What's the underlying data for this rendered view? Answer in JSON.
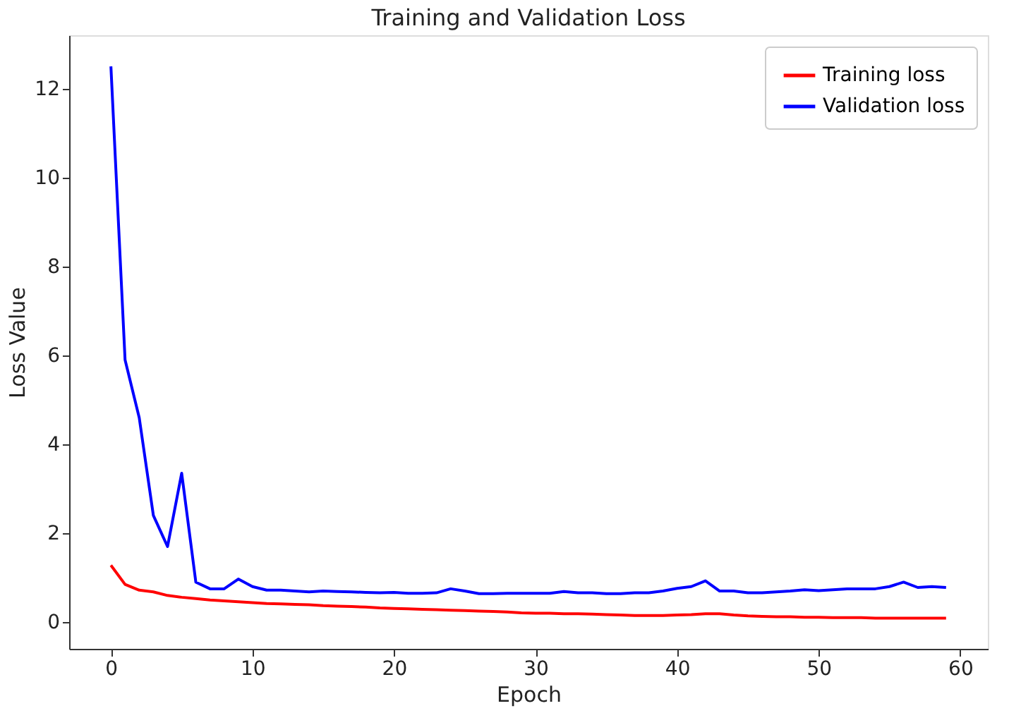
{
  "chart_data": {
    "type": "line",
    "title": "Training and Validation Loss",
    "xlabel": "Epoch",
    "ylabel": "Loss Value",
    "x": [
      0,
      1,
      2,
      3,
      4,
      5,
      6,
      7,
      8,
      9,
      10,
      11,
      12,
      13,
      14,
      15,
      16,
      17,
      18,
      19,
      20,
      21,
      22,
      23,
      24,
      25,
      26,
      27,
      28,
      29,
      30,
      31,
      32,
      33,
      34,
      35,
      36,
      37,
      38,
      39,
      40,
      41,
      42,
      43,
      44,
      45,
      46,
      47,
      48,
      49,
      50,
      51,
      52,
      53,
      54,
      55,
      56,
      57,
      58,
      59
    ],
    "series": [
      {
        "name": "Training loss",
        "color": "#ff0000",
        "values": [
          1.28,
          0.85,
          0.72,
          0.68,
          0.6,
          0.56,
          0.53,
          0.5,
          0.48,
          0.46,
          0.44,
          0.42,
          0.41,
          0.4,
          0.39,
          0.37,
          0.36,
          0.35,
          0.34,
          0.32,
          0.31,
          0.3,
          0.29,
          0.28,
          0.27,
          0.26,
          0.25,
          0.24,
          0.23,
          0.21,
          0.2,
          0.2,
          0.19,
          0.19,
          0.18,
          0.17,
          0.16,
          0.15,
          0.15,
          0.15,
          0.16,
          0.17,
          0.19,
          0.19,
          0.16,
          0.14,
          0.13,
          0.12,
          0.12,
          0.11,
          0.11,
          0.1,
          0.1,
          0.1,
          0.09,
          0.09,
          0.09,
          0.09,
          0.09,
          0.09
        ]
      },
      {
        "name": "Validation loss",
        "color": "#0000ff",
        "values": [
          12.5,
          5.9,
          4.6,
          2.4,
          1.7,
          3.35,
          0.9,
          0.75,
          0.75,
          0.97,
          0.8,
          0.72,
          0.72,
          0.7,
          0.68,
          0.7,
          0.69,
          0.68,
          0.67,
          0.66,
          0.67,
          0.65,
          0.65,
          0.66,
          0.75,
          0.7,
          0.64,
          0.64,
          0.65,
          0.65,
          0.65,
          0.65,
          0.69,
          0.66,
          0.66,
          0.64,
          0.64,
          0.66,
          0.66,
          0.7,
          0.76,
          0.8,
          0.93,
          0.7,
          0.7,
          0.66,
          0.66,
          0.68,
          0.7,
          0.73,
          0.71,
          0.73,
          0.75,
          0.75,
          0.75,
          0.8,
          0.9,
          0.78,
          0.8,
          0.78
        ]
      }
    ],
    "xlim": [
      -2.95,
      61.95
    ],
    "xticks": [
      0,
      10,
      20,
      30,
      40,
      50,
      60
    ],
    "ylim": [
      -0.6,
      13.2
    ],
    "yticks": [
      0,
      2,
      4,
      6,
      8,
      10,
      12
    ],
    "legend": "top right",
    "grid": false,
    "marker": "none",
    "line_style": "solid"
  }
}
